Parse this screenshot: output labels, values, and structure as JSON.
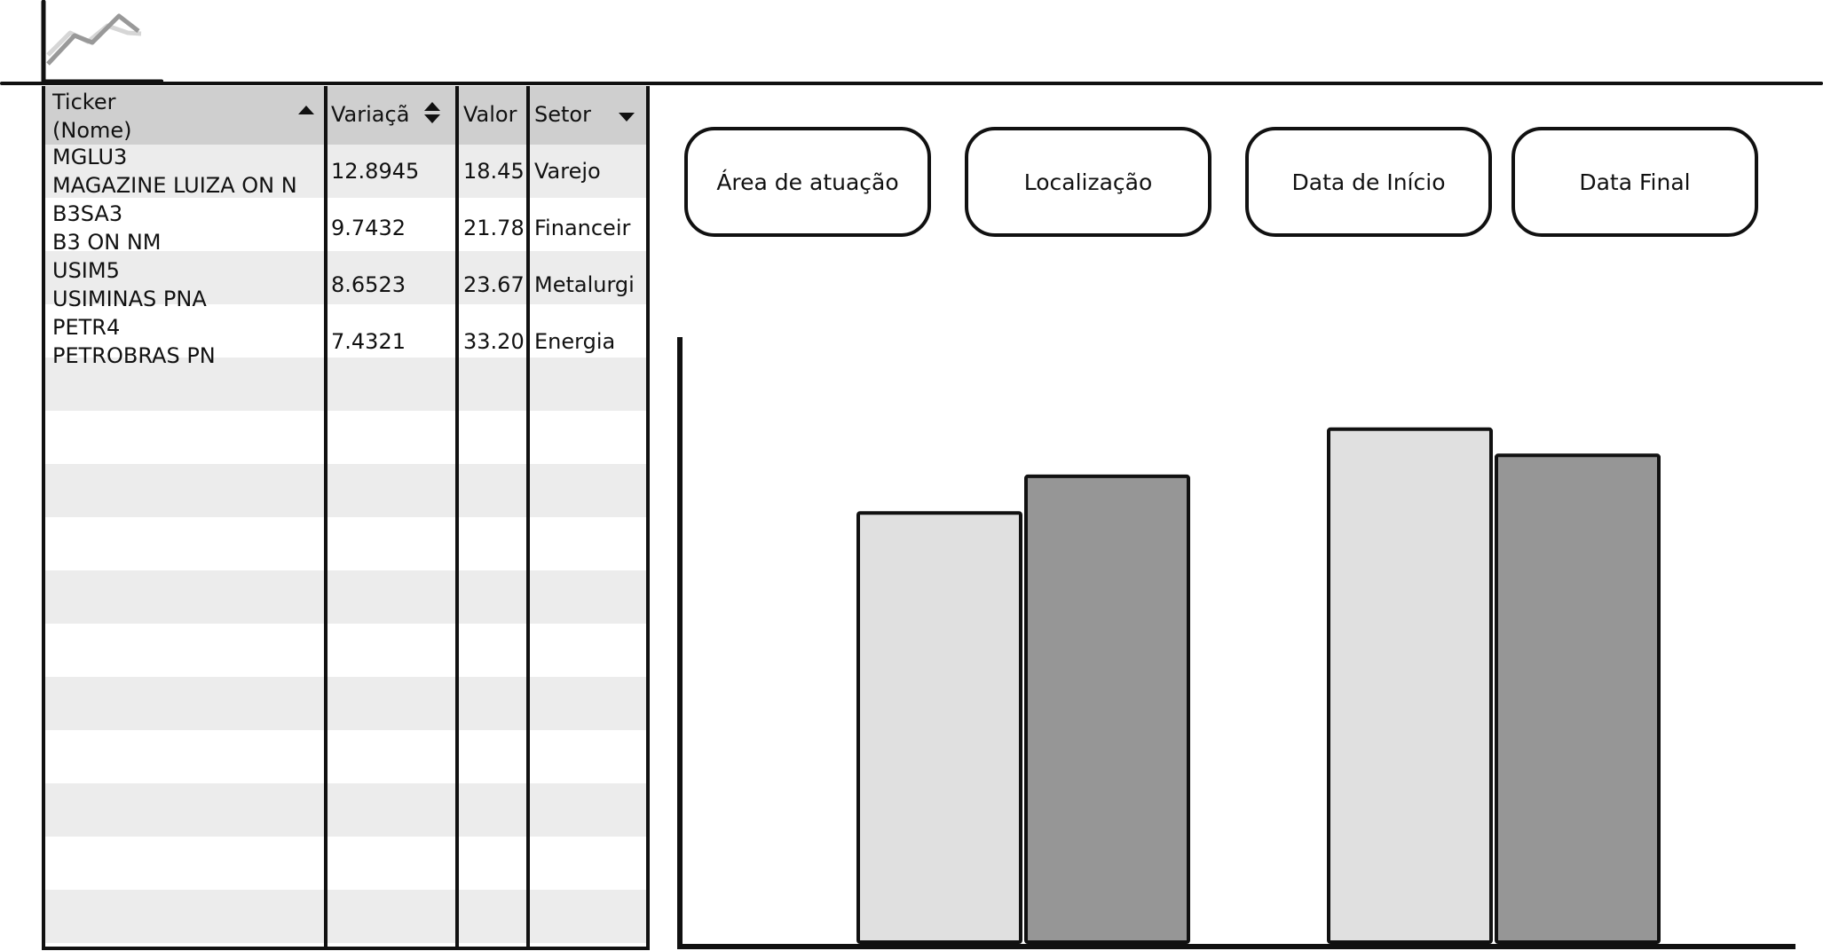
{
  "table": {
    "headers": [
      {
        "label": "Ticker\n(Nome)",
        "sort": "asc"
      },
      {
        "label": "Variaçã",
        "sort": "both"
      },
      {
        "label": "Valor",
        "sort": "none"
      },
      {
        "label": "Setor",
        "sort": "desc"
      }
    ],
    "rows": [
      {
        "ticker": "MGLU3",
        "nome": "MAGAZINE LUIZA ON N",
        "variacao": "12.8945",
        "valor": "18.45",
        "setor": "Varejo"
      },
      {
        "ticker": "B3SA3",
        "nome": "B3 ON NM",
        "variacao": "9.7432",
        "valor": "21.78",
        "setor": "Financeir"
      },
      {
        "ticker": "USIM5",
        "nome": "USIMINAS PNA",
        "variacao": "8.6523",
        "valor": "23.67",
        "setor": "Metalurgi"
      },
      {
        "ticker": "PETR4",
        "nome": "PETROBRAS PN",
        "variacao": "7.4321",
        "valor": "33.20",
        "setor": "Energia"
      }
    ]
  },
  "filters": [
    {
      "label": "Área de atuação"
    },
    {
      "label": "Localização"
    },
    {
      "label": "Data de Início"
    },
    {
      "label": "Data Final"
    }
  ],
  "chart_data": {
    "type": "bar",
    "title": "",
    "xlabel": "",
    "ylabel": "",
    "categories": [
      "",
      ""
    ],
    "series": [
      {
        "values": [
          0.82,
          0.98
        ],
        "color": "#e0e0e0"
      },
      {
        "values": [
          0.89,
          0.93
        ],
        "color": "#969696"
      }
    ],
    "ylim": [
      0,
      1
    ],
    "grid": false
  }
}
